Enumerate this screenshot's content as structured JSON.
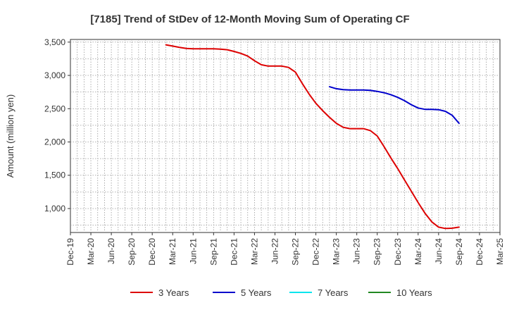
{
  "chart_data": {
    "type": "line",
    "title": "[7185]  Trend of StDev of 12-Month Moving Sum of Operating CF",
    "xlabel": "",
    "ylabel": "Amount (million yen)",
    "ylim": [
      640,
      3540
    ],
    "yticks": [
      1000,
      1500,
      2000,
      2500,
      3000,
      3500
    ],
    "ytick_labels": [
      "1,000",
      "1,500",
      "2,000",
      "2,500",
      "3,000",
      "3,500"
    ],
    "x_range": [
      "2019-12",
      "2025-03"
    ],
    "xtick_labels": [
      "Dec-19",
      "Mar-20",
      "Jun-20",
      "Sep-20",
      "Dec-20",
      "Mar-21",
      "Jun-21",
      "Sep-21",
      "Dec-21",
      "Mar-22",
      "Jun-22",
      "Sep-22",
      "Dec-22",
      "Mar-23",
      "Jun-23",
      "Sep-23",
      "Dec-23",
      "Mar-24",
      "Jun-24",
      "Sep-24",
      "Dec-24",
      "Mar-25"
    ],
    "grid": true,
    "legend_position": "bottom",
    "series": [
      {
        "name": "3 Years",
        "color": "#dd0000",
        "x": [
          "2021-02",
          "2021-03",
          "2021-04",
          "2021-05",
          "2021-06",
          "2021-07",
          "2021-08",
          "2021-09",
          "2021-10",
          "2021-11",
          "2021-12",
          "2022-01",
          "2022-02",
          "2022-03",
          "2022-04",
          "2022-05",
          "2022-06",
          "2022-07",
          "2022-08",
          "2022-09",
          "2022-10",
          "2022-11",
          "2022-12",
          "2023-01",
          "2023-02",
          "2023-03",
          "2023-04",
          "2023-05",
          "2023-06",
          "2023-07",
          "2023-08",
          "2023-09",
          "2023-10",
          "2023-11",
          "2023-12",
          "2024-01",
          "2024-02",
          "2024-03",
          "2024-04",
          "2024-05",
          "2024-06",
          "2024-07",
          "2024-08",
          "2024-09"
        ],
        "values": [
          3460,
          3440,
          3420,
          3405,
          3400,
          3400,
          3400,
          3400,
          3395,
          3385,
          3360,
          3330,
          3290,
          3220,
          3160,
          3140,
          3140,
          3140,
          3120,
          3050,
          2880,
          2720,
          2580,
          2470,
          2370,
          2280,
          2220,
          2200,
          2200,
          2200,
          2170,
          2090,
          1930,
          1760,
          1600,
          1430,
          1260,
          1090,
          930,
          800,
          720,
          700,
          705,
          720
        ]
      },
      {
        "name": "5 Years",
        "color": "#0000cc",
        "x": [
          "2023-02",
          "2023-03",
          "2023-04",
          "2023-05",
          "2023-06",
          "2023-07",
          "2023-08",
          "2023-09",
          "2023-10",
          "2023-11",
          "2023-12",
          "2024-01",
          "2024-02",
          "2024-03",
          "2024-04",
          "2024-05",
          "2024-06",
          "2024-07",
          "2024-08",
          "2024-09"
        ],
        "values": [
          2830,
          2800,
          2785,
          2780,
          2780,
          2780,
          2775,
          2760,
          2740,
          2710,
          2670,
          2620,
          2560,
          2510,
          2490,
          2490,
          2485,
          2460,
          2400,
          2280
        ]
      },
      {
        "name": "7 Years",
        "color": "#00e5ee",
        "x": [],
        "values": []
      },
      {
        "name": "10 Years",
        "color": "#228822",
        "x": [],
        "values": []
      }
    ]
  }
}
